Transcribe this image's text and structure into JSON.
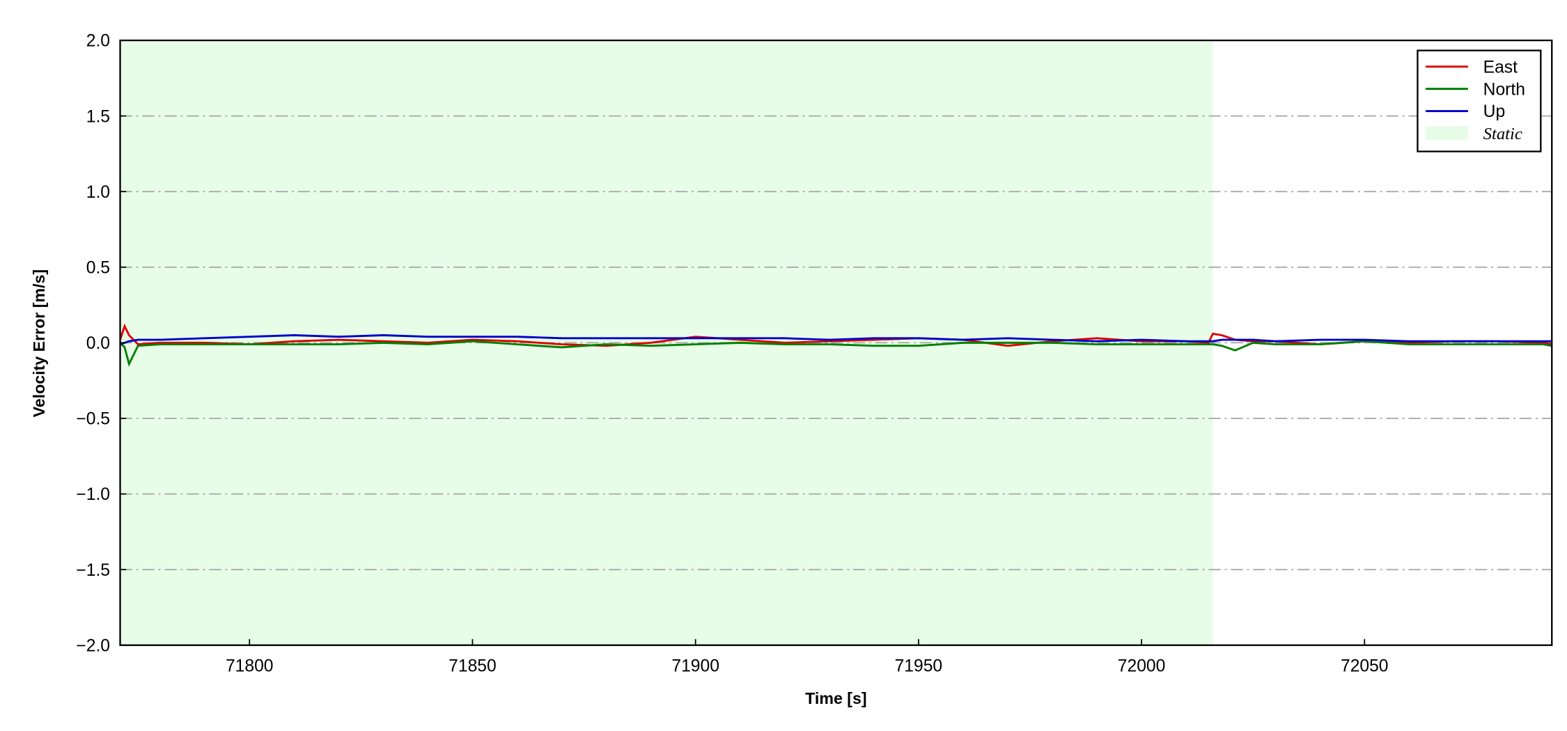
{
  "chart_data": {
    "type": "line",
    "xlabel": "Time [s]",
    "ylabel": "Velocity Error [m/s]",
    "x": [
      71771,
      71772,
      71773,
      71775,
      71780,
      71790,
      71800,
      71810,
      71820,
      71830,
      71840,
      71850,
      71860,
      71870,
      71880,
      71890,
      71900,
      71910,
      71920,
      71930,
      71940,
      71950,
      71960,
      71970,
      71980,
      71990,
      72000,
      72010,
      72015,
      72016,
      72018,
      72021,
      72025,
      72030,
      72040,
      72050,
      72060,
      72070,
      72080,
      72090,
      72092
    ],
    "series": [
      {
        "name": "East",
        "color": "#dd0000",
        "values": [
          0.02,
          0.11,
          0.05,
          -0.01,
          0,
          0,
          -0.01,
          0.01,
          0.02,
          0.01,
          0,
          0.02,
          0.01,
          -0.01,
          -0.02,
          0,
          0.04,
          0.02,
          0,
          0.01,
          0.02,
          0.03,
          0.02,
          -0.02,
          0.01,
          0.03,
          0.01,
          0.01,
          0.0,
          0.06,
          0.05,
          0.02,
          0.01,
          0.01,
          -0.01,
          0.01,
          0,
          0.01,
          0.01,
          0,
          -0.01
        ]
      },
      {
        "name": "North",
        "color": "#008000",
        "values": [
          0,
          -0.03,
          -0.14,
          -0.02,
          -0.01,
          -0.01,
          -0.01,
          -0.01,
          -0.01,
          0,
          -0.01,
          0.01,
          -0.01,
          -0.03,
          -0.01,
          -0.02,
          -0.01,
          0,
          -0.01,
          -0.01,
          -0.02,
          -0.02,
          0,
          0,
          0,
          -0.01,
          -0.01,
          -0.01,
          -0.01,
          -0.01,
          -0.02,
          -0.05,
          0,
          -0.01,
          -0.01,
          0.01,
          -0.01,
          -0.01,
          -0.01,
          -0.01,
          -0.02
        ]
      },
      {
        "name": "Up",
        "color": "#0000cc",
        "values": [
          -0.01,
          0,
          0.01,
          0.02,
          0.02,
          0.03,
          0.04,
          0.05,
          0.04,
          0.05,
          0.04,
          0.04,
          0.04,
          0.03,
          0.03,
          0.03,
          0.03,
          0.03,
          0.03,
          0.02,
          0.03,
          0.03,
          0.02,
          0.03,
          0.02,
          0.01,
          0.02,
          0.01,
          0.01,
          0.01,
          0.02,
          0.02,
          0.02,
          0.01,
          0.02,
          0.02,
          0.01,
          0.01,
          0.01,
          0.01,
          0.01
        ]
      }
    ],
    "shaded_region": {
      "label": "Static",
      "start": 71771,
      "end": 72016,
      "color": "#e8fde8"
    },
    "xlim": [
      71771,
      72092
    ],
    "xticks": [
      71800,
      71850,
      71900,
      71950,
      72000,
      72050
    ],
    "ylim": [
      -2,
      2
    ],
    "yticks": [
      {
        "value": -2,
        "label": "−2.0"
      },
      {
        "value": -1.5,
        "label": "−1.5"
      },
      {
        "value": -1,
        "label": "−1.0"
      },
      {
        "value": -0.5,
        "label": "−0.5"
      },
      {
        "value": 0,
        "label": "0.0"
      },
      0.5,
      {
        "value": 1,
        "label": "1.0"
      },
      1.5,
      {
        "value": 2,
        "label": "2.0"
      }
    ],
    "grid": true,
    "legend": "upper right"
  }
}
